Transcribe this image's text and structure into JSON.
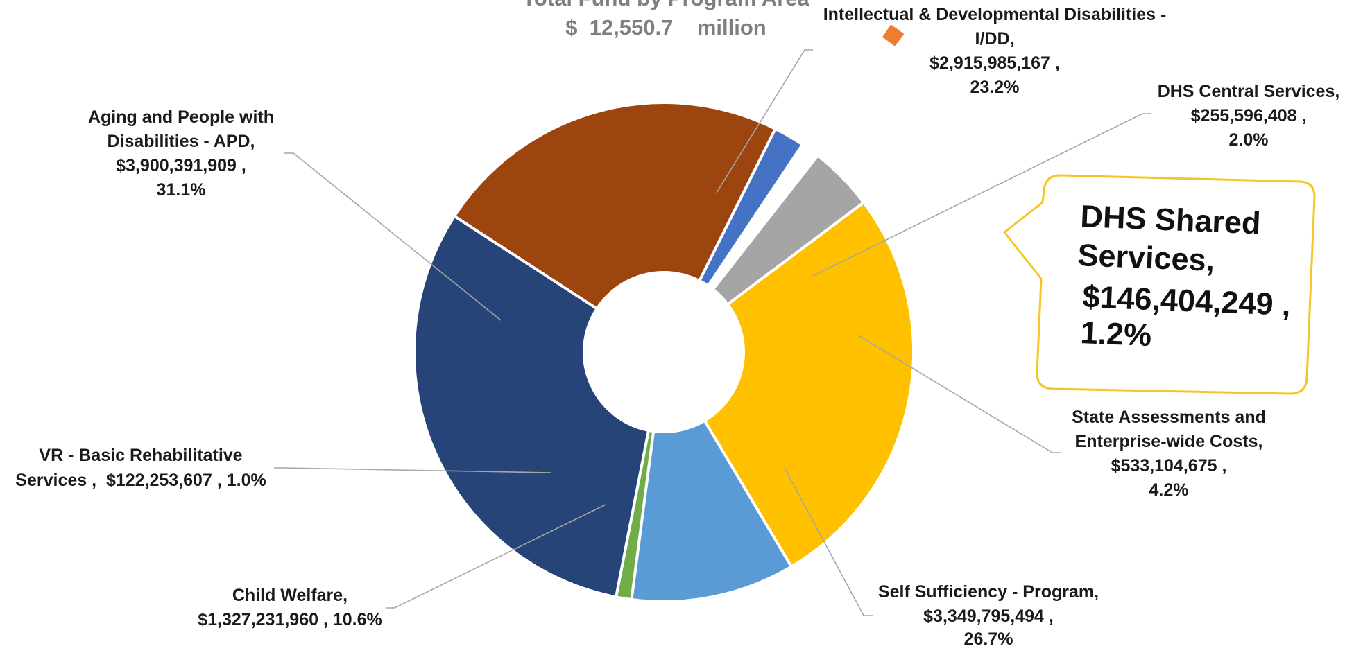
{
  "chart_data": {
    "type": "pie",
    "variant": "donut",
    "title": "Total Fund by Program Area",
    "subtitle": "$  12,550.7    million",
    "slices": [
      {
        "name": "Intellectual & Developmental Disabilities - I/DD,",
        "amount": "$2,915,985,167 ,",
        "percent": "23.2%",
        "value": 23.2,
        "color": "#9C450E"
      },
      {
        "name": "DHS Central Services,",
        "amount": "$255,596,408 ,",
        "percent": "2.0%",
        "value": 2.0,
        "color": "#4472C4"
      },
      {
        "name": "DHS Shared Services,",
        "amount": "$146,404,249 ,",
        "percent": "1.2%",
        "value": 1.2,
        "color": "#ED7D31",
        "exploded": true
      },
      {
        "name": "State Assessments and Enterprise-wide Costs,",
        "amount": "$533,104,675 ,",
        "percent": "4.2%",
        "value": 4.2,
        "color": "#A5A5A5"
      },
      {
        "name": "Self Sufficiency - Program,",
        "amount": "$3,349,795,494 ,",
        "percent": "26.7%",
        "value": 26.7,
        "color": "#FFC000"
      },
      {
        "name": "Child Welfare,",
        "amount": "$1,327,231,960 ,",
        "percent": "10.6%",
        "value": 10.6,
        "color": "#5B9BD5"
      },
      {
        "name": "VR - Basic Rehabilitative Services ,",
        "amount": "$122,253,607 ,",
        "percent": "1.0%",
        "value": 1.0,
        "color": "#70AD47"
      },
      {
        "name": "Aging and People with Disabilities - APD,",
        "amount": "$3,900,391,909 ,",
        "percent": "31.1%",
        "value": 31.1,
        "color": "#264478"
      }
    ],
    "legend": "none"
  }
}
